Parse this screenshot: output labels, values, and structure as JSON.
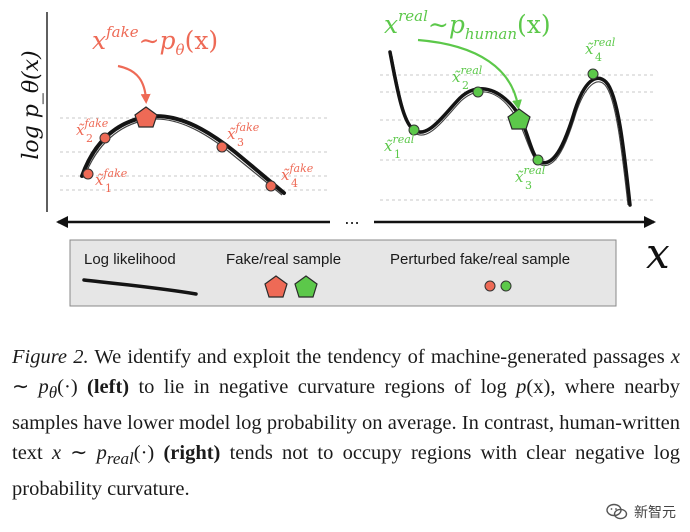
{
  "figure": {
    "y_axis_label": "log p_θ(x)",
    "x_axis_symbol": "x",
    "gap_marker": "...",
    "left_panel": {
      "annotation": {
        "var": "x",
        "sup": "fake",
        "op": "∼",
        "dist": "p",
        "sub": "θ",
        "arg": "(x)"
      },
      "perturbed": [
        {
          "tilde": "x̃",
          "index": "1",
          "sup": "fake"
        },
        {
          "tilde": "x̃",
          "index": "2",
          "sup": "fake"
        },
        {
          "tilde": "x̃",
          "index": "3",
          "sup": "fake"
        },
        {
          "tilde": "x̃",
          "index": "4",
          "sup": "fake"
        }
      ]
    },
    "right_panel": {
      "annotation": {
        "var": "x",
        "sup": "real",
        "op": "∼",
        "dist": "p",
        "sub": "human",
        "arg": "(x)"
      },
      "perturbed": [
        {
          "tilde": "x̃",
          "index": "1",
          "sup": "real"
        },
        {
          "tilde": "x̃",
          "index": "2",
          "sup": "real"
        },
        {
          "tilde": "x̃",
          "index": "3",
          "sup": "real"
        },
        {
          "tilde": "x̃",
          "index": "4",
          "sup": "real"
        }
      ]
    },
    "legend": {
      "log_likelihood": "Log likelihood",
      "sample": "Fake/real sample",
      "perturbed_sample": "Perturbed fake/real sample"
    },
    "colors": {
      "fake": "#ee6a56",
      "real": "#5cc84a",
      "curve": "#141414",
      "grid": "#c8c8c8",
      "legend_bg": "#e6e6e6",
      "legend_border": "#888888"
    }
  },
  "caption": {
    "label": "Figure 2.",
    "t1": " We identify and exploit the tendency of machine-generated passages ",
    "m1_var": "x",
    "m1_op": " ∼ ",
    "m1_dist": "p",
    "m1_sub": "θ",
    "m1_arg": "(·)",
    "b1": " (left)",
    "t2": " to lie in negative curvature regions of ",
    "m2_fn": "log",
    "m2_dist": " p",
    "m2_arg": "(x)",
    "t3": ", where nearby samples have lower model log probability on average.  In contrast, human-written text ",
    "m3_var": "x",
    "m3_op": " ∼ ",
    "m3_dist": "p",
    "m3_sub": "real",
    "m3_arg": "(·)",
    "b2": " (right)",
    "t4": " tends not to occupy regions with clear negative log probability curvature."
  },
  "watermark": {
    "text": "新智元",
    "icon": "wechat-icon"
  }
}
